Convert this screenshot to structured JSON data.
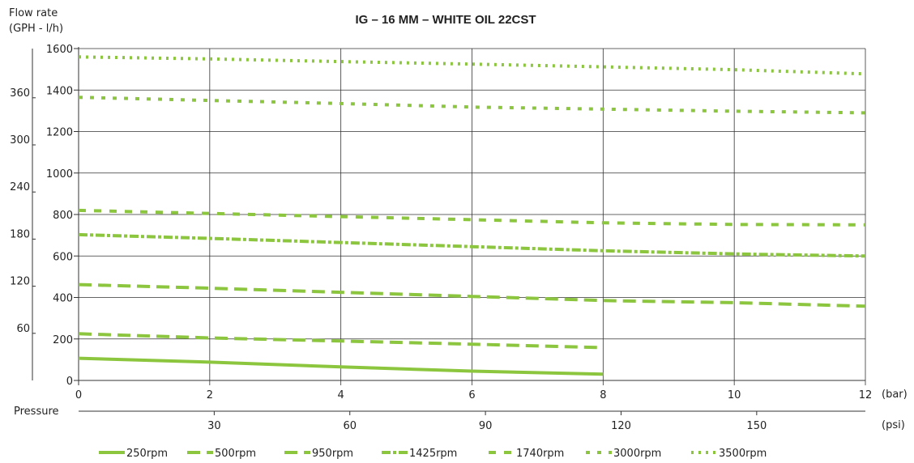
{
  "chart_data": {
    "type": "line",
    "title": "IG – 16 MM – WHITE OIL 22CST",
    "ylabel_lines": [
      "Flow rate",
      "(GPH - l/h)"
    ],
    "xlabel": "Pressure",
    "x_unit_bar": "(bar)",
    "x_unit_psi": "(psi)",
    "x_ticks_bar": [
      "0",
      "2",
      "4",
      "6",
      "8",
      "10",
      "12"
    ],
    "x_ticks_psi": [
      "30",
      "60",
      "90",
      "120",
      "150"
    ],
    "y_ticks_lh": [
      "0",
      "200",
      "400",
      "600",
      "800",
      "1000",
      "1200",
      "1400",
      "1600"
    ],
    "y_ticks_gph": [
      "60",
      "120",
      "180",
      "240",
      "300",
      "360"
    ],
    "xlim": [
      0,
      12
    ],
    "ylim": [
      0,
      1600
    ],
    "color": "#8cc63f",
    "grid": true,
    "legend_position": "bottom",
    "series": [
      {
        "name": "250",
        "unit": "rpm",
        "dash": "solid",
        "x": [
          0,
          2,
          4,
          6,
          8
        ],
        "values": [
          107,
          88,
          65,
          45,
          30
        ]
      },
      {
        "name": "500",
        "unit": "rpm",
        "dash": "long",
        "x": [
          0,
          2,
          4,
          6,
          8
        ],
        "values": [
          225,
          205,
          190,
          175,
          158
        ]
      },
      {
        "name": "950",
        "unit": "rpm",
        "dash": "long",
        "x": [
          0,
          2,
          4,
          6,
          8,
          10,
          12
        ],
        "values": [
          462,
          445,
          425,
          405,
          385,
          375,
          358
        ]
      },
      {
        "name": "1425",
        "unit": "rpm",
        "dash": "dashdot",
        "x": [
          0,
          2,
          4,
          6,
          8,
          10,
          12
        ],
        "values": [
          703,
          685,
          665,
          645,
          625,
          610,
          600
        ]
      },
      {
        "name": "1740",
        "unit": "rpm",
        "dash": "medium",
        "x": [
          0,
          2,
          4,
          6,
          8,
          10,
          12
        ],
        "values": [
          820,
          805,
          790,
          775,
          760,
          752,
          750
        ]
      },
      {
        "name": "3000",
        "unit": "rpm",
        "dash": "short",
        "x": [
          0,
          2,
          4,
          6,
          8,
          10,
          12
        ],
        "values": [
          1365,
          1350,
          1335,
          1318,
          1308,
          1298,
          1290
        ]
      },
      {
        "name": "3500",
        "unit": "rpm",
        "dash": "dotted",
        "x": [
          0,
          2,
          4,
          6,
          8,
          10,
          12
        ],
        "values": [
          1560,
          1550,
          1537,
          1525,
          1512,
          1498,
          1478
        ]
      }
    ]
  }
}
